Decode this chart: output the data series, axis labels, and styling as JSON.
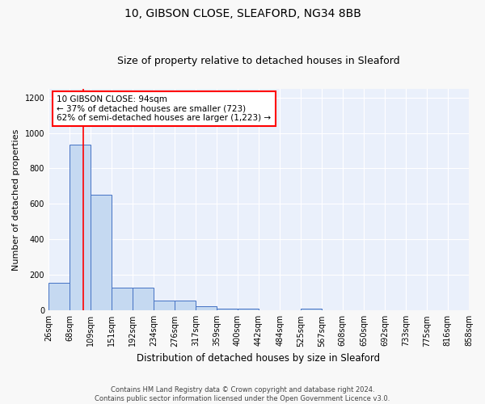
{
  "title1": "10, GIBSON CLOSE, SLEAFORD, NG34 8BB",
  "title2": "Size of property relative to detached houses in Sleaford",
  "xlabel": "Distribution of detached houses by size in Sleaford",
  "ylabel": "Number of detached properties",
  "footer": "Contains HM Land Registry data © Crown copyright and database right 2024.\nContains public sector information licensed under the Open Government Licence v3.0.",
  "bin_edges": [
    26,
    68,
    109,
    151,
    192,
    234,
    276,
    317,
    359,
    400,
    442,
    484,
    525,
    567,
    608,
    650,
    692,
    733,
    775,
    816,
    858
  ],
  "bar_heights": [
    155,
    935,
    650,
    130,
    130,
    55,
    55,
    25,
    12,
    12,
    0,
    0,
    12,
    0,
    0,
    0,
    0,
    0,
    0,
    0
  ],
  "bar_color": "#c5d9f1",
  "bar_edge_color": "#4472c4",
  "red_line_x": 94,
  "annotation_text": "10 GIBSON CLOSE: 94sqm\n← 37% of detached houses are smaller (723)\n62% of semi-detached houses are larger (1,223) →",
  "ylim": [
    0,
    1250
  ],
  "yticks": [
    0,
    200,
    400,
    600,
    800,
    1000,
    1200
  ],
  "bg_color": "#eaf0fb",
  "grid_color": "#ffffff",
  "fig_bg_color": "#f8f8f8",
  "title1_fontsize": 10,
  "title2_fontsize": 9,
  "tick_label_fontsize": 7,
  "ylabel_fontsize": 8,
  "xlabel_fontsize": 8.5,
  "footer_fontsize": 6,
  "ann_fontsize": 7.5
}
